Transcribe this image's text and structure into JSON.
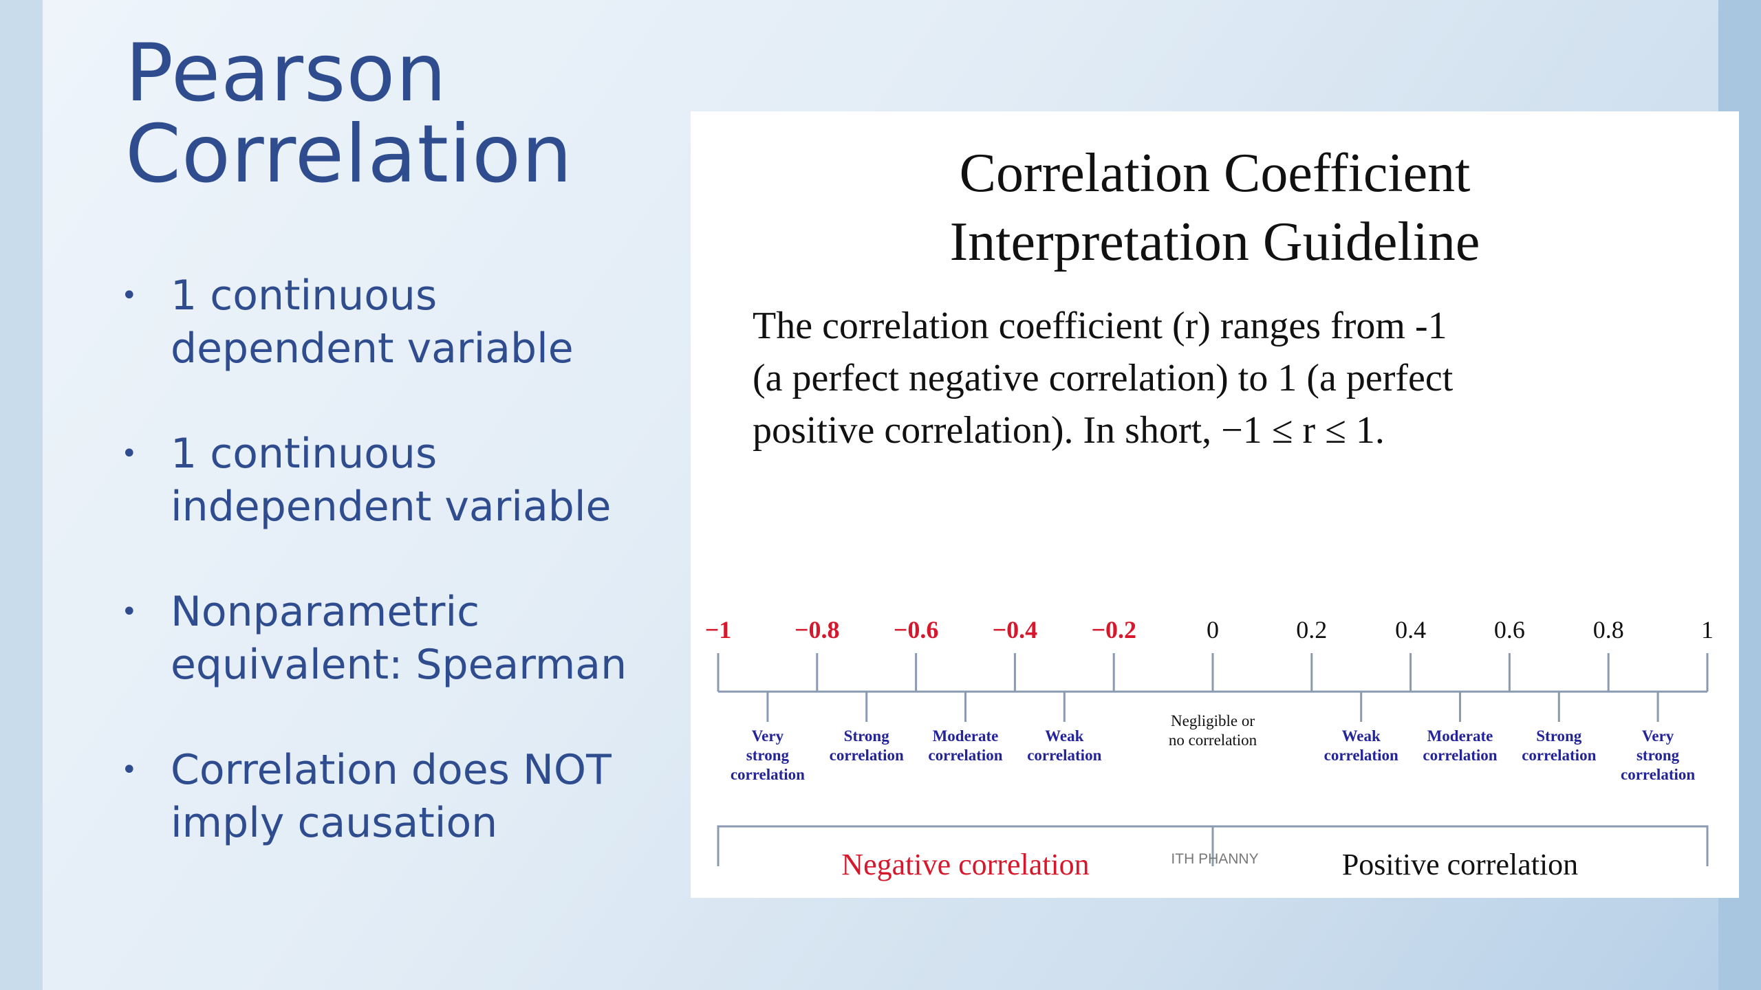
{
  "slide": {
    "title_lines": [
      "Pearson",
      "Correlation"
    ],
    "bullets": [
      [
        "1 continuous",
        "dependent variable"
      ],
      [
        "1 continuous",
        "independent variable"
      ],
      [
        "Nonparametric",
        "equivalent: Spearman"
      ],
      [
        "Correlation does NOT",
        "imply causation"
      ]
    ]
  },
  "figure": {
    "title_lines": [
      "Correlation Coefficient",
      "Interpretation Guideline"
    ],
    "description_lines": [
      "The correlation coefficient (r) ranges from -1",
      "(a perfect negative correlation) to 1 (a perfect",
      "positive correlation). In short, −1 ≤ r ≤ 1."
    ],
    "credit": "ITH PHANNY"
  },
  "chart_data": {
    "type": "number-line",
    "xlim": [
      -1,
      1
    ],
    "ticks": [
      {
        "value": -1,
        "label": "−1"
      },
      {
        "value": -0.8,
        "label": "−0.8"
      },
      {
        "value": -0.6,
        "label": "−0.6"
      },
      {
        "value": -0.4,
        "label": "−0.4"
      },
      {
        "value": -0.2,
        "label": "−0.2"
      },
      {
        "value": 0,
        "label": "0"
      },
      {
        "value": 0.2,
        "label": "0.2"
      },
      {
        "value": 0.4,
        "label": "0.4"
      },
      {
        "value": 0.6,
        "label": "0.6"
      },
      {
        "value": 0.8,
        "label": "0.8"
      },
      {
        "value": 1,
        "label": "1"
      }
    ],
    "categories": [
      {
        "from": -1,
        "to": -0.8,
        "lines": [
          "Very",
          "strong",
          "correlation"
        ]
      },
      {
        "from": -0.8,
        "to": -0.6,
        "lines": [
          "Strong",
          "correlation"
        ]
      },
      {
        "from": -0.6,
        "to": -0.4,
        "lines": [
          "Moderate",
          "correlation"
        ]
      },
      {
        "from": -0.4,
        "to": -0.2,
        "lines": [
          "Weak",
          "correlation"
        ]
      },
      {
        "from": -0.2,
        "to": 0.2,
        "lines": [
          "Negligible or",
          "no correlation"
        ]
      },
      {
        "from": 0.2,
        "to": 0.4,
        "lines": [
          "Weak",
          "correlation"
        ]
      },
      {
        "from": 0.4,
        "to": 0.6,
        "lines": [
          "Moderate",
          "correlation"
        ]
      },
      {
        "from": 0.6,
        "to": 0.8,
        "lines": [
          "Strong",
          "correlation"
        ]
      },
      {
        "from": 0.8,
        "to": 1,
        "lines": [
          "Very",
          "strong",
          "correlation"
        ]
      }
    ],
    "regions": [
      {
        "from": -1,
        "to": 0,
        "label": "Negative correlation"
      },
      {
        "from": 0,
        "to": 1,
        "label": "Positive correlation"
      }
    ],
    "colors": {
      "negative": "#d7172b",
      "positive": "#111111",
      "category_text": "#23239a",
      "neutral_text": "#111111",
      "axis": "#8a9ab0"
    }
  }
}
